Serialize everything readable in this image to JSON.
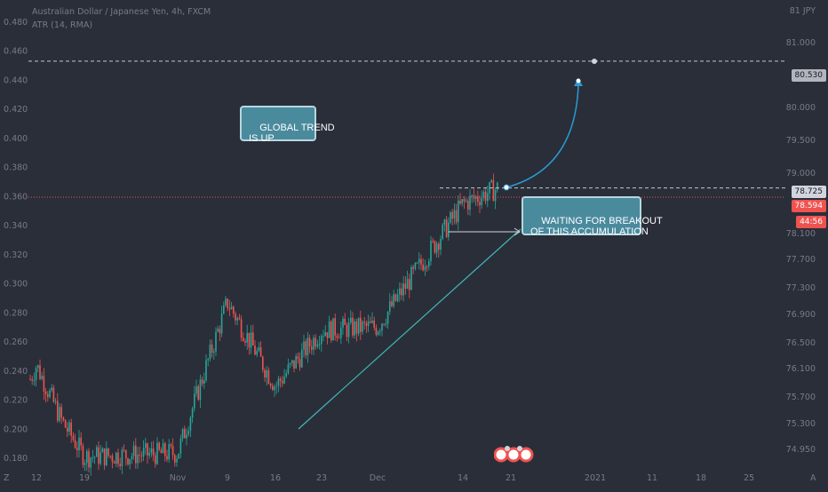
{
  "header": {
    "symbol_line": "Australian Dollar / Japanese Yen, 4h, FXCM",
    "indicator_line": "ATR (14, RMA)"
  },
  "right_axis": {
    "currency": "81 JPY",
    "labels": [
      "81.000",
      "80.000",
      "79.500",
      "79.000",
      "78.100",
      "77.700",
      "77.300",
      "76.900",
      "76.500",
      "76.100",
      "75.700",
      "75.300",
      "74.950"
    ]
  },
  "price_tags": {
    "target": "80.530",
    "resistance": "78.725",
    "last_price": "78.594",
    "countdown": "44:56"
  },
  "annotations": {
    "global_trend": "GLOBAL TREND\nIS UP",
    "breakout": "WAITING FOR BREAKOUT\nOF THIS ACCUMULATION"
  },
  "bottom_axis": {
    "corner_left": "Z",
    "corner_right": "A"
  },
  "colors": {
    "background": "#2a2e39",
    "up": "#26a69a",
    "down": "#ef5350",
    "text": "#787b86",
    "callout_fill": "#4a8a9d",
    "arrow": "#2a9bd4"
  },
  "chart_data": {
    "type": "candlestick",
    "title": "Australian Dollar / Japanese Yen, 4h, FXCM",
    "left_axis": {
      "ticks": [
        "0.480",
        "0.460",
        "0.440",
        "0.420",
        "0.400",
        "0.380",
        "0.360",
        "0.340",
        "0.320",
        "0.300",
        "0.280",
        "0.260",
        "0.240",
        "0.220",
        "0.200",
        "0.180"
      ],
      "range": [
        0.178,
        0.486
      ]
    },
    "x_axis": {
      "tick_labels": [
        "12",
        "19",
        "Nov",
        "9",
        "16",
        "23",
        "Dec",
        "14",
        "21",
        "2021",
        "11",
        "18",
        "25"
      ]
    },
    "horizontal_levels": [
      {
        "name": "target",
        "value": 80.53,
        "style": "dashed"
      },
      {
        "name": "resistance",
        "value": 78.725,
        "style": "dashed"
      },
      {
        "name": "last_price",
        "value": 78.594,
        "style": "dotted"
      }
    ],
    "key_prices": [
      {
        "x": "12",
        "y": 76.2
      },
      {
        "x": "19",
        "y": 74.9
      },
      {
        "x": "Nov",
        "y": 74.95
      },
      {
        "x": "9",
        "y": 77.1
      },
      {
        "x": "16",
        "y": 75.9
      },
      {
        "x": "23",
        "y": 76.7
      },
      {
        "x": "Dec",
        "y": 76.75
      },
      {
        "x": "14",
        "y": 78.5
      },
      {
        "x": "21",
        "y": 78.6
      }
    ],
    "series": [
      {
        "name": "ATR (14, RMA)",
        "values": []
      }
    ],
    "legend": "top-left",
    "grid": false
  }
}
